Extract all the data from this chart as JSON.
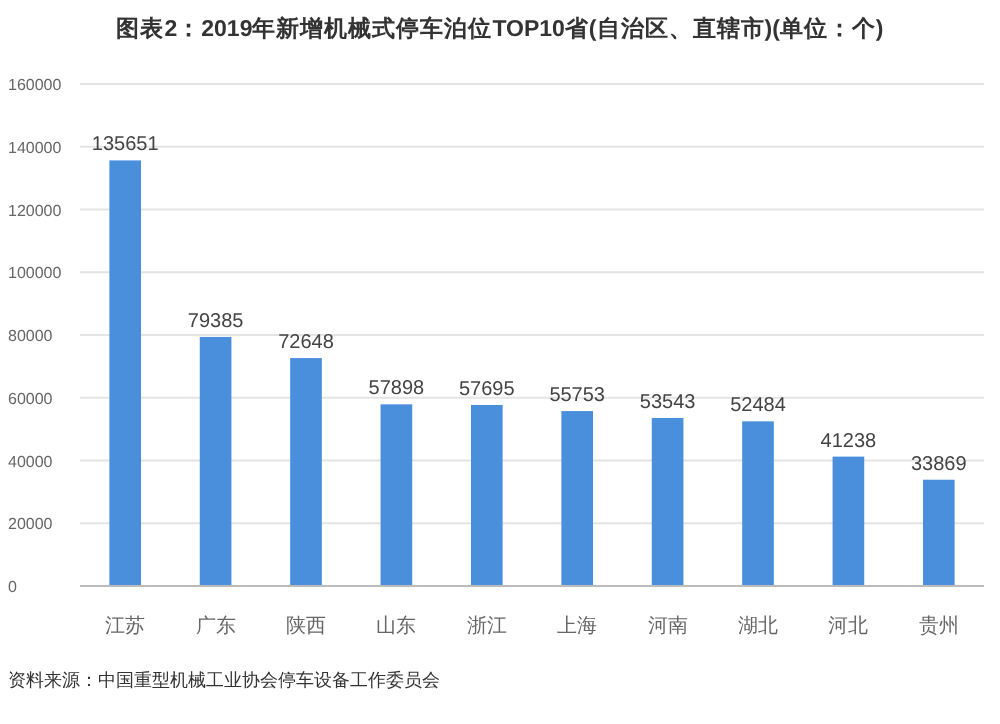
{
  "chart_data": {
    "type": "bar",
    "title": "图表2：2019年新增机械式停车泊位TOP10省(自治区、直辖市)(单位：个)",
    "categories": [
      "江苏",
      "广东",
      "陕西",
      "山东",
      "浙江",
      "上海",
      "河南",
      "湖北",
      "河北",
      "贵州"
    ],
    "values": [
      135651,
      79385,
      72648,
      57898,
      57695,
      55753,
      53543,
      52484,
      41238,
      33869
    ],
    "color": "#4a8fdc",
    "ylim": [
      0,
      160000
    ],
    "yticks": [
      0,
      20000,
      40000,
      60000,
      80000,
      100000,
      120000,
      140000,
      160000
    ],
    "grid": "y",
    "data_labels": true,
    "annotations": [
      "资料来源：中国重型机械工业协会停车设备工作委员会"
    ]
  }
}
